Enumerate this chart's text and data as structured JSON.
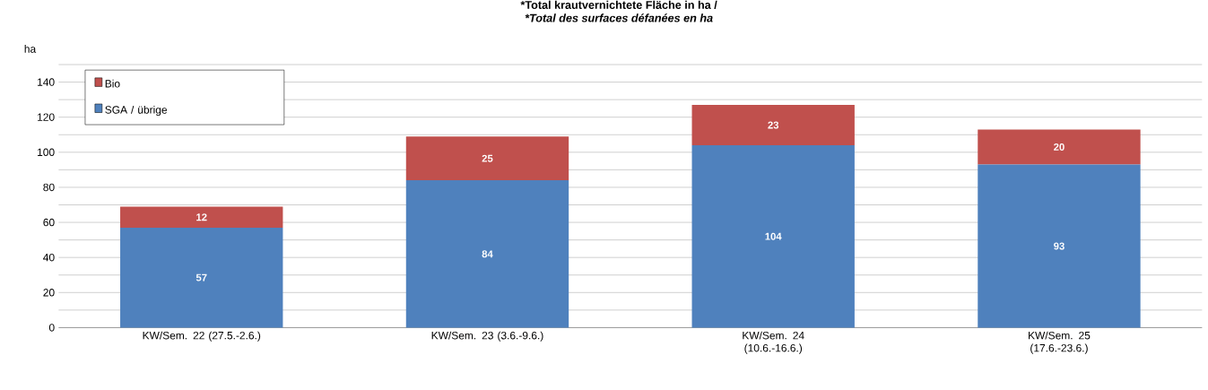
{
  "chart_data": {
    "type": "bar",
    "stacked": true,
    "title": "*Total krautvernichtete Fläche in ha /",
    "subtitle": "*Total des surfaces défanées en ha",
    "ylabel": "ha",
    "categories": [
      "KW/Sem. 22 (27.5.-2.6.)",
      "KW/Sem. 23 (3.6.-9.6.)",
      "KW/Sem. 24 (10.6.-16.6.)",
      "KW/Sem. 25 (17.6.-23.6.)"
    ],
    "series": [
      {
        "name": "SGA / übrige",
        "color": "#4f81bd",
        "values": [
          57,
          84,
          104,
          93
        ]
      },
      {
        "name": "Bio",
        "color": "#c0504d",
        "values": [
          12,
          25,
          23,
          20
        ]
      }
    ],
    "ylim": [
      0,
      150
    ],
    "yticks": [
      0,
      {
        "value": 10,
        "label": null
      },
      20,
      {
        "value": 30,
        "label": null
      },
      40,
      {
        "value": 50,
        "label": null
      },
      60,
      {
        "value": 70,
        "label": null
      },
      80,
      {
        "value": 90,
        "label": null
      },
      100,
      {
        "value": 110,
        "label": null
      },
      120,
      {
        "value": 130,
        "label": null
      },
      140,
      {
        "value": 150,
        "label": null
      }
    ],
    "grid": "y",
    "legend": "top left",
    "data_labels": true
  }
}
